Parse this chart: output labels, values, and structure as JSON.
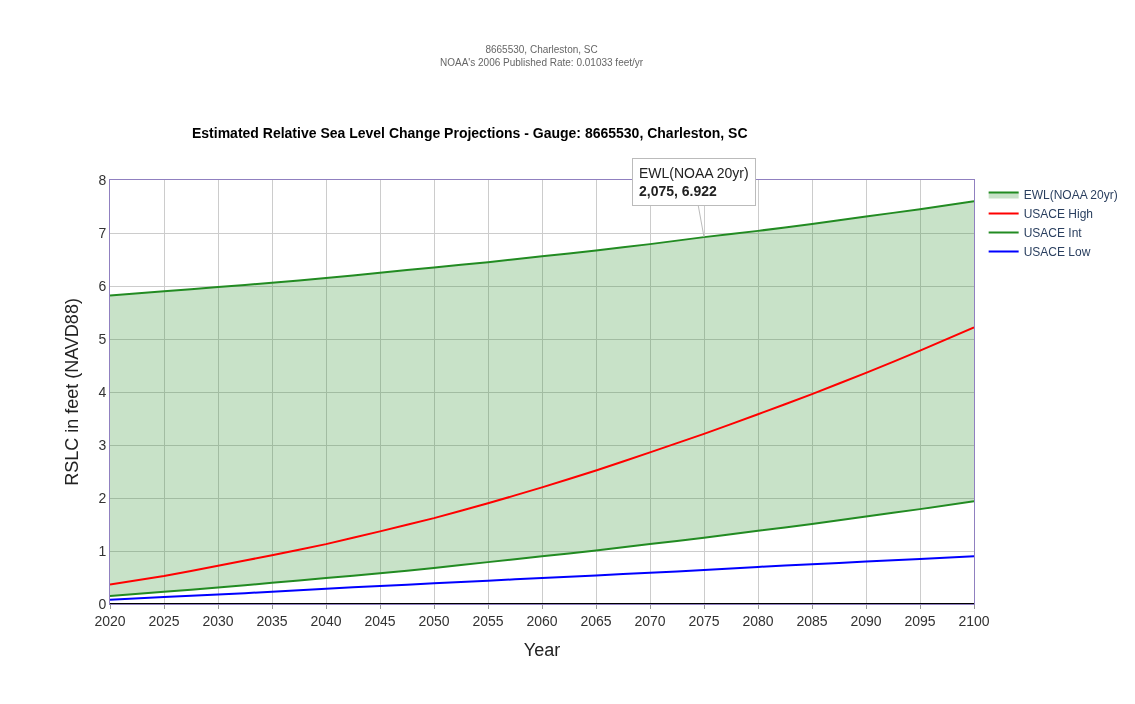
{
  "chart_data": {
    "type": "line",
    "title": "Estimated Relative Sea Level Change Projections - Gauge: 8665530, Charleston, SC",
    "subtitle": "8665530, Charleston, SC\nNOAA's 2006 Published Rate: 0.01033 feet/yr",
    "xlabel": "Year",
    "ylabel": "RSLC in feet (NAVD88)",
    "x": [
      2020,
      2025,
      2030,
      2035,
      2040,
      2045,
      2050,
      2055,
      2060,
      2065,
      2070,
      2075,
      2080,
      2085,
      2090,
      2095,
      2100
    ],
    "series": [
      {
        "name": "EWL(NOAA 20yr)",
        "type": "area",
        "color": "#228b22",
        "values": [
          5.82,
          5.9,
          5.98,
          6.06,
          6.15,
          6.25,
          6.35,
          6.45,
          6.56,
          6.67,
          6.79,
          6.922,
          7.04,
          7.17,
          7.31,
          7.45,
          7.6
        ]
      },
      {
        "name": "USACE High",
        "color": "#ff0000",
        "values": [
          0.37,
          0.53,
          0.72,
          0.92,
          1.13,
          1.37,
          1.62,
          1.9,
          2.2,
          2.52,
          2.86,
          3.21,
          3.58,
          3.96,
          4.36,
          4.78,
          5.22
        ]
      },
      {
        "name": "USACE Int",
        "color": "#228b22",
        "values": [
          0.15,
          0.23,
          0.31,
          0.4,
          0.49,
          0.58,
          0.68,
          0.79,
          0.9,
          1.01,
          1.13,
          1.25,
          1.38,
          1.51,
          1.65,
          1.79,
          1.94
        ]
      },
      {
        "name": "USACE Low",
        "color": "#0000ff",
        "values": [
          0.08,
          0.13,
          0.18,
          0.23,
          0.29,
          0.34,
          0.39,
          0.44,
          0.49,
          0.54,
          0.59,
          0.64,
          0.7,
          0.75,
          0.8,
          0.85,
          0.9
        ]
      }
    ],
    "annotations": [
      {
        "text": "EWL(NOAA 20yr)\n2,075, 6.922",
        "x": 2075,
        "y": 6.922
      }
    ],
    "xlim": [
      2020,
      2100
    ],
    "xticks": [
      2020,
      2025,
      2030,
      2035,
      2040,
      2045,
      2050,
      2055,
      2060,
      2065,
      2070,
      2075,
      2080,
      2085,
      2090,
      2095,
      2100
    ],
    "ylim": [
      0,
      8
    ],
    "yticks": [
      0,
      1,
      2,
      3,
      4,
      5,
      6,
      7,
      8
    ],
    "grid": true,
    "legend": "right",
    "marker": "none",
    "line_style": "solid"
  }
}
